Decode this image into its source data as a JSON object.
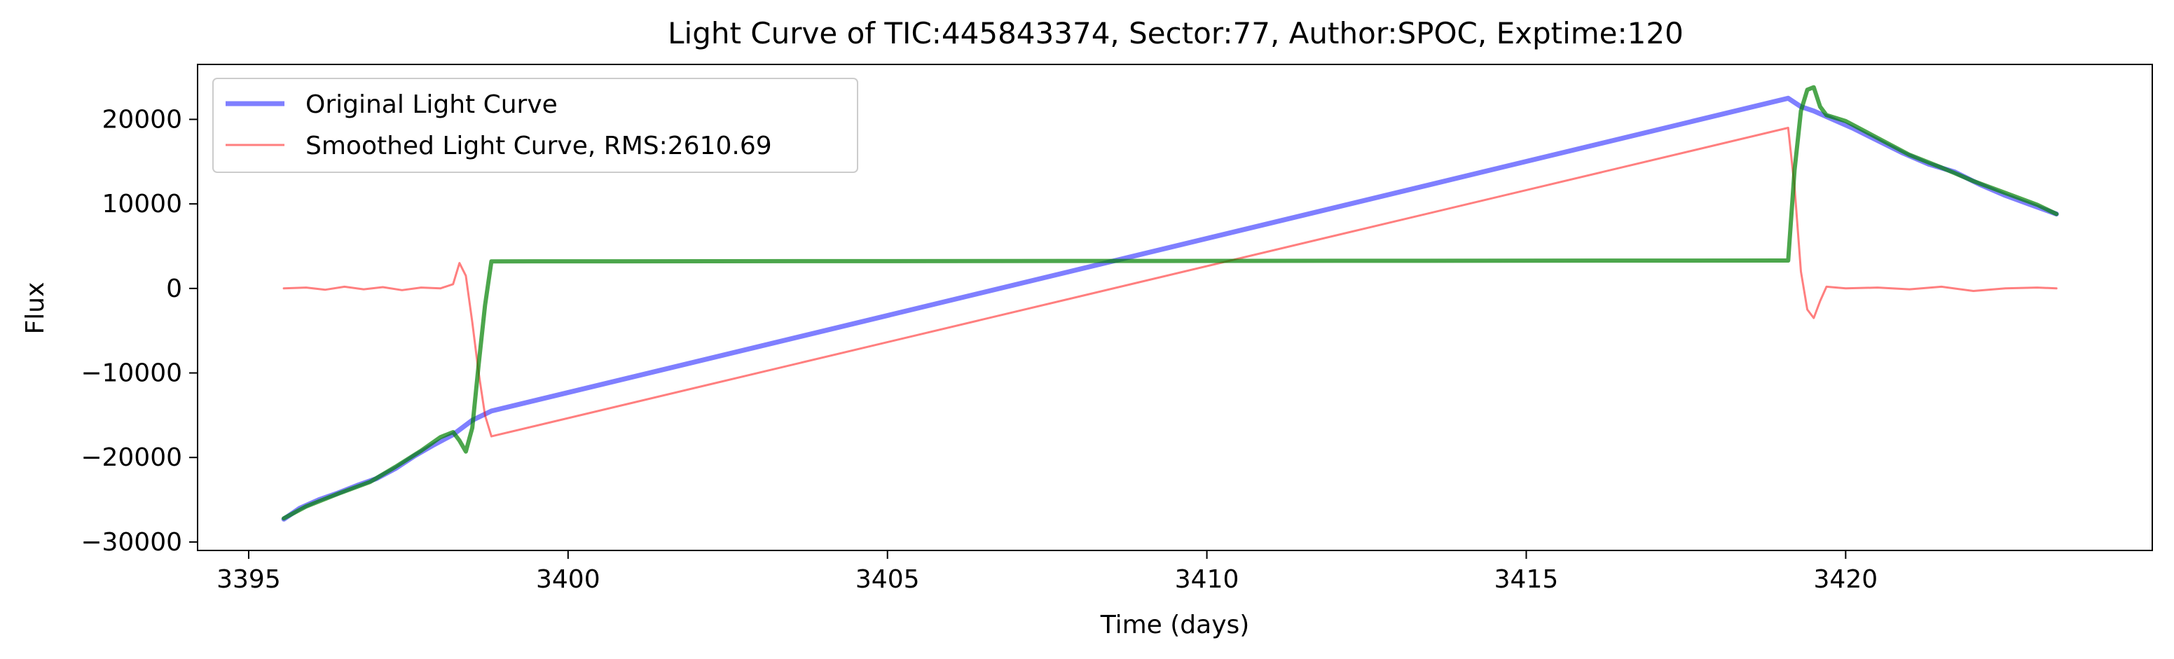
{
  "chart_data": {
    "type": "line",
    "title": "Light Curve of TIC:445843374, Sector:77, Author:SPOC, Exptime:120",
    "xlabel": "Time (days)",
    "ylabel": "Flux",
    "xlim": [
      3394.2,
      3424.8
    ],
    "ylim": [
      -31000,
      26500
    ],
    "xticks": [
      3395,
      3400,
      3405,
      3410,
      3415,
      3420
    ],
    "xtick_labels": [
      "3395",
      "3400",
      "3405",
      "3410",
      "3415",
      "3420"
    ],
    "yticks": [
      20000,
      10000,
      0,
      -10000,
      -20000,
      -30000
    ],
    "ytick_labels": [
      "20000",
      "10000",
      "0",
      "−10000",
      "−20000",
      "−30000"
    ],
    "grid": false,
    "legend_position": "upper left",
    "series": [
      {
        "name": "Original Light Curve",
        "color": "#0000ff",
        "opacity": 0.5,
        "x": [
          3395.55,
          3395.8,
          3396.1,
          3396.4,
          3396.7,
          3397.0,
          3397.3,
          3397.6,
          3397.9,
          3398.2,
          3398.5,
          3398.8,
          3419.1,
          3419.3,
          3419.5,
          3419.8,
          3420.1,
          3420.5,
          3420.9,
          3421.3,
          3421.7,
          3422.1,
          3422.5,
          3422.9,
          3423.3
        ],
        "y": [
          -27300,
          -26000,
          -25000,
          -24200,
          -23300,
          -22500,
          -21300,
          -19800,
          -18500,
          -17300,
          -15600,
          -14500,
          22500,
          21500,
          21000,
          20000,
          19000,
          17500,
          16000,
          14700,
          13800,
          12300,
          11000,
          9900,
          8800
        ]
      },
      {
        "name": "Smoothed Light Curve, RMS:2610.69",
        "color": "#ff0000",
        "opacity": 0.5,
        "x": [
          3395.55,
          3395.9,
          3396.2,
          3396.5,
          3396.8,
          3397.1,
          3397.4,
          3397.7,
          3398.0,
          3398.2,
          3398.3,
          3398.4,
          3398.5,
          3398.6,
          3398.7,
          3398.8,
          3419.1,
          3419.2,
          3419.3,
          3419.4,
          3419.5,
          3419.6,
          3419.7,
          3420.0,
          3420.5,
          3421.0,
          3421.5,
          3422.0,
          3422.5,
          3423.0,
          3423.3
        ],
        "y": [
          0,
          100,
          -150,
          200,
          -100,
          150,
          -200,
          100,
          0,
          500,
          3000,
          1500,
          -4000,
          -10000,
          -15000,
          -17500,
          19000,
          12000,
          2000,
          -2500,
          -3500,
          -1500,
          200,
          0,
          100,
          -100,
          200,
          -300,
          0,
          100,
          0
        ]
      },
      {
        "name": "",
        "color": "#008000",
        "opacity": 0.7,
        "x": [
          3395.55,
          3395.9,
          3396.4,
          3396.9,
          3397.3,
          3397.7,
          3398.0,
          3398.2,
          3398.3,
          3398.4,
          3398.5,
          3398.6,
          3398.7,
          3398.8,
          3419.1,
          3419.2,
          3419.3,
          3419.4,
          3419.5,
          3419.6,
          3419.7,
          3420.0,
          3420.5,
          3421.0,
          3421.5,
          3422.0,
          3422.5,
          3423.0,
          3423.3
        ],
        "y": [
          -27200,
          -25800,
          -24300,
          -22900,
          -21100,
          -19200,
          -17600,
          -17000,
          -18000,
          -19300,
          -16500,
          -9000,
          -2000,
          3200,
          3300,
          14000,
          21000,
          23500,
          23800,
          21500,
          20500,
          19800,
          17800,
          15800,
          14300,
          12700,
          11300,
          9900,
          8800
        ]
      }
    ]
  }
}
